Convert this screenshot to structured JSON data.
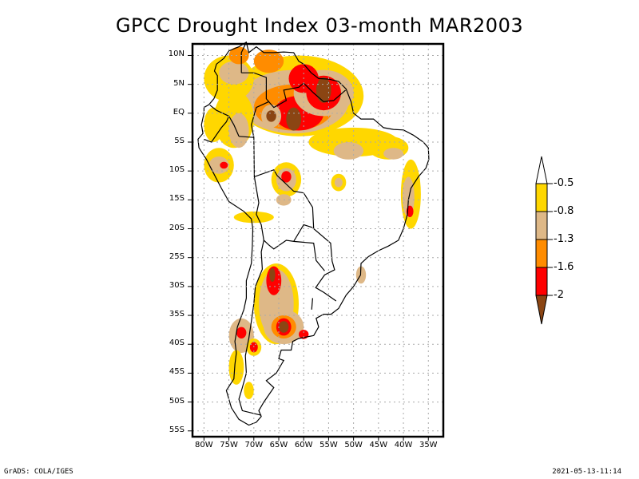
{
  "title": "GPCC Drought Index 03-month MAR2003",
  "footer": {
    "left": "GrADS: COLA/IGES",
    "right": "2021-05-13-11:14"
  },
  "map": {
    "region": "South America",
    "lon_range": [
      -82,
      -32
    ],
    "lat_range": [
      -56,
      12
    ],
    "y_tick_labels": [
      {
        "lat": 10,
        "label": "10N"
      },
      {
        "lat": 5,
        "label": "5N"
      },
      {
        "lat": 0,
        "label": "EQ"
      },
      {
        "lat": -5,
        "label": "5S"
      },
      {
        "lat": -10,
        "label": "10S"
      },
      {
        "lat": -15,
        "label": "15S"
      },
      {
        "lat": -20,
        "label": "20S"
      },
      {
        "lat": -25,
        "label": "25S"
      },
      {
        "lat": -30,
        "label": "30S"
      },
      {
        "lat": -35,
        "label": "35S"
      },
      {
        "lat": -40,
        "label": "40S"
      },
      {
        "lat": -45,
        "label": "45S"
      },
      {
        "lat": -50,
        "label": "50S"
      },
      {
        "lat": -55,
        "label": "55S"
      }
    ],
    "x_tick_labels": [
      {
        "lon": -80,
        "label": "80W"
      },
      {
        "lon": -75,
        "label": "75W"
      },
      {
        "lon": -70,
        "label": "70W"
      },
      {
        "lon": -65,
        "label": "65W"
      },
      {
        "lon": -60,
        "label": "60W"
      },
      {
        "lon": -55,
        "label": "55W"
      },
      {
        "lon": -50,
        "label": "50W"
      },
      {
        "lon": -45,
        "label": "45W"
      },
      {
        "lon": -40,
        "label": "40W"
      },
      {
        "lon": -35,
        "label": "35W"
      }
    ],
    "grid": "dotted"
  },
  "legend": {
    "thresholds": [
      "-0.5",
      "-0.8",
      "-1.3",
      "-1.6",
      "-2"
    ],
    "colors": [
      "#ffffff",
      "#ffd700",
      "#deb887",
      "#ff8c00",
      "#ff0000",
      "#8b4513"
    ]
  },
  "drought_areas": [
    {
      "name": "northern-amazon-venezuela",
      "level": 4,
      "lon": -63,
      "lat": 1
    },
    {
      "name": "guyana-suriname",
      "level": 5,
      "lon": -56,
      "lat": 4
    },
    {
      "name": "central-amazon",
      "level": 5,
      "lon": -62,
      "lat": -1
    },
    {
      "name": "bolivia",
      "level": 4,
      "lon": -63,
      "lat": -11
    },
    {
      "name": "east-brazil",
      "level": 4,
      "lon": -39,
      "lat": -17
    },
    {
      "name": "central-argentina",
      "level": 5,
      "lon": -64,
      "lat": -37
    },
    {
      "name": "northwest-argentina",
      "level": 5,
      "lon": -66,
      "lat": -29
    },
    {
      "name": "central-chile",
      "level": 4,
      "lon": -72,
      "lat": -38
    }
  ]
}
